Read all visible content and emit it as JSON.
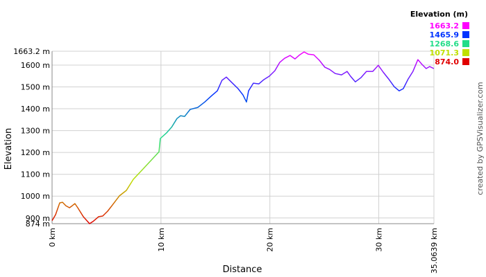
{
  "chart_data": {
    "type": "line",
    "y_label": "Elevation",
    "x_label": "Distance",
    "credit": "created by GPSVisualizer.com",
    "legend_title": "Elevation (m)",
    "legend": [
      {
        "value": 1663.2,
        "color": "#ff00ff"
      },
      {
        "value": 1465.9,
        "color": "#0033ff"
      },
      {
        "value": 1268.6,
        "color": "#22dd88"
      },
      {
        "value": 1071.3,
        "color": "#c0e000"
      },
      {
        "value": 874,
        "label": "874.0",
        "color": "#e00000"
      }
    ],
    "x": [
      0,
      0.32,
      0.7,
      0.96,
      1.27,
      1.6,
      1.85,
      2.1,
      2.36,
      2.87,
      3.44,
      3.76,
      4.27,
      4.65,
      5.1,
      5.6,
      6.18,
      6.82,
      7.46,
      8.29,
      9.11,
      9.82,
      9.94,
      10.5,
      11.0,
      11.47,
      11.8,
      12.17,
      12.68,
      13.38,
      14.02,
      14.66,
      15.17,
      15.6,
      16.0,
      16.44,
      17.08,
      17.53,
      17.85,
      18.04,
      18.48,
      18.99,
      19.44,
      19.95,
      20.46,
      20.9,
      21.35,
      21.86,
      22.31,
      22.75,
      23.14,
      23.52,
      24.03,
      24.54,
      25.05,
      25.49,
      26.0,
      26.58,
      27.09,
      27.4,
      27.85,
      28.36,
      28.87,
      29.45,
      29.96,
      30.4,
      30.91,
      31.42,
      31.87,
      32.25,
      32.7,
      33.14,
      33.59,
      33.97,
      34.35,
      34.67,
      35.06
    ],
    "values": [
      888,
      915,
      969,
      972,
      956,
      947,
      956,
      966,
      947,
      906,
      874,
      884,
      906,
      909,
      931,
      963,
      1001,
      1026,
      1077,
      1121,
      1165,
      1203,
      1264,
      1289,
      1317,
      1355,
      1368,
      1365,
      1397,
      1406,
      1431,
      1460,
      1482,
      1530,
      1545,
      1523,
      1492,
      1463,
      1431,
      1482,
      1517,
      1514,
      1533,
      1549,
      1574,
      1612,
      1631,
      1644,
      1628,
      1647,
      1660,
      1650,
      1647,
      1622,
      1590,
      1580,
      1561,
      1555,
      1571,
      1549,
      1523,
      1542,
      1571,
      1571,
      1599,
      1568,
      1536,
      1501,
      1482,
      1492,
      1536,
      1571,
      1625,
      1603,
      1584,
      1593,
      1584
    ],
    "xlim": [
      0,
      35.0639
    ],
    "xticks": [
      {
        "value": 0,
        "label": "0 km"
      },
      {
        "value": 10,
        "label": "10 km"
      },
      {
        "value": 20,
        "label": "20 km"
      },
      {
        "value": 30,
        "label": "30 km"
      },
      {
        "value": 35.0639,
        "label": "35.0639 km"
      }
    ],
    "ylim": [
      874,
      1663.2
    ],
    "yticks": [
      {
        "value": 874,
        "label": "874 m"
      },
      {
        "value": 900,
        "label": "900 m"
      },
      {
        "value": 1000,
        "label": "1000 m"
      },
      {
        "value": 1100,
        "label": "1100 m"
      },
      {
        "value": 1200,
        "label": "1200 m"
      },
      {
        "value": 1300,
        "label": "1300 m"
      },
      {
        "value": 1400,
        "label": "1400 m"
      },
      {
        "value": 1500,
        "label": "1500 m"
      },
      {
        "value": 1600,
        "label": "1600 m"
      },
      {
        "value": 1663.2,
        "label": "1663.2 m"
      }
    ],
    "grid": true
  }
}
